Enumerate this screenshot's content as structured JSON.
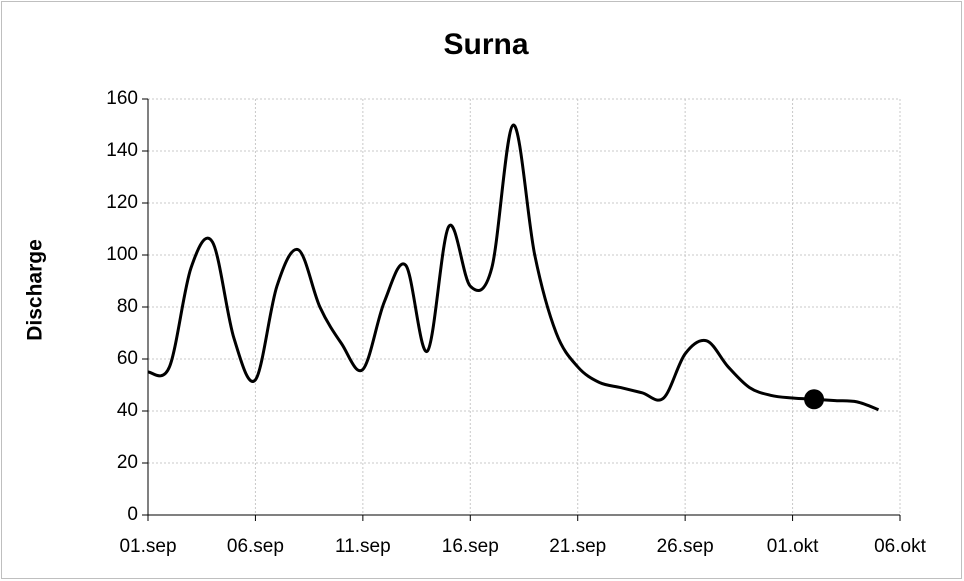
{
  "chart_data": {
    "type": "line",
    "title": "Surna",
    "y_label": "Discharge",
    "x": [
      "01.sep",
      "02.sep",
      "03.sep",
      "04.sep",
      "05.sep",
      "06.sep",
      "07.sep",
      "08.sep",
      "09.sep",
      "10.sep",
      "11.sep",
      "12.sep",
      "13.sep",
      "14.sep",
      "15.sep",
      "16.sep",
      "17.sep",
      "18.sep",
      "19.sep",
      "20.sep",
      "21.sep",
      "22.sep",
      "23.sep",
      "24.sep",
      "25.sep",
      "26.sep",
      "27.sep",
      "28.sep",
      "29.sep",
      "30.sep",
      "01.okt",
      "02.okt",
      "03.okt",
      "04.okt",
      "05.okt"
    ],
    "series": [
      {
        "name": "Discharge",
        "color": "#000000",
        "values": [
          55,
          57,
          95,
          105,
          68,
          52,
          88,
          102,
          80,
          66,
          56,
          82,
          96,
          63,
          111,
          88,
          95,
          150,
          100,
          70,
          57,
          51,
          49,
          47,
          45,
          62,
          67,
          57,
          49,
          46,
          45,
          44.5,
          44,
          43.5,
          40.5
        ]
      }
    ],
    "marker": {
      "x": "02.okt",
      "value": 44.5,
      "color": "#000000"
    },
    "xlim": [
      "01.sep",
      "06.okt"
    ],
    "xticks": [
      "01.sep",
      "06.sep",
      "11.sep",
      "16.sep",
      "21.sep",
      "26.sep",
      "01.okt",
      "06.okt"
    ],
    "ylim": [
      0,
      160
    ],
    "yticks": [
      0,
      20,
      40,
      60,
      80,
      100,
      120,
      140,
      160
    ],
    "grid": true
  }
}
